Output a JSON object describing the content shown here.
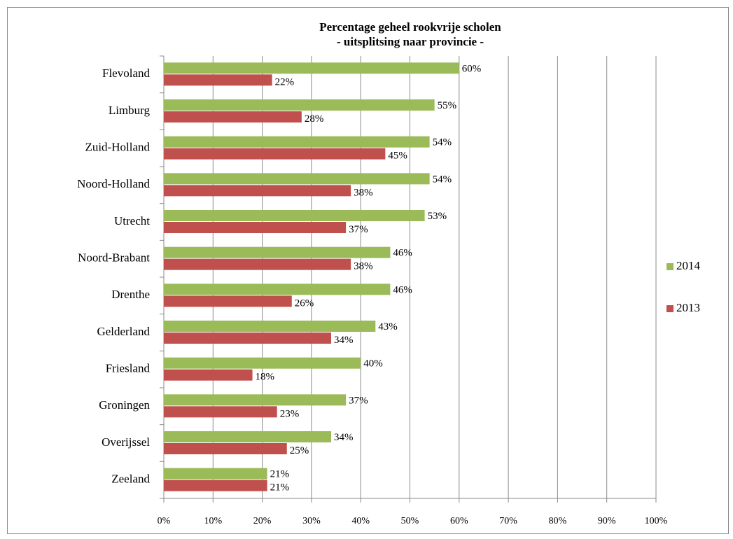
{
  "chart_data": {
    "type": "bar",
    "orientation": "horizontal",
    "title": [
      "Percentage geheel rookvrije scholen",
      "- uitsplitsing naar provincie -"
    ],
    "categories": [
      "Flevoland",
      "Limburg",
      "Zuid-Holland",
      "Noord-Holland",
      "Utrecht",
      "Noord-Brabant",
      "Drenthe",
      "Gelderland",
      "Friesland",
      "Groningen",
      "Overijssel",
      "Zeeland"
    ],
    "series": [
      {
        "name": "2014",
        "color": "#9bbb59",
        "values": [
          60,
          55,
          54,
          54,
          53,
          46,
          46,
          43,
          40,
          37,
          34,
          21
        ],
        "value_labels": [
          "60%",
          "55%",
          "54%",
          "54%",
          "53%",
          "46%",
          "46%",
          "43%",
          "40%",
          "37%",
          "34%",
          "21%"
        ]
      },
      {
        "name": "2013",
        "color": "#c0504d",
        "values": [
          22,
          28,
          45,
          38,
          37,
          38,
          26,
          34,
          18,
          23,
          25,
          21
        ],
        "value_labels": [
          "22%",
          "28%",
          "45%",
          "38%",
          "37%",
          "38%",
          "26%",
          "34%",
          "18%",
          "23%",
          "25%",
          "21%"
        ]
      }
    ],
    "xlim": [
      0,
      100
    ],
    "xticks": [
      {
        "value": 0,
        "label": "0%"
      },
      {
        "value": 10,
        "label": "10%"
      },
      {
        "value": 20,
        "label": "20%"
      },
      {
        "value": 30,
        "label": "30%"
      },
      {
        "value": 40,
        "label": "40%"
      },
      {
        "value": 50,
        "label": "50%"
      },
      {
        "value": 60,
        "label": "60%"
      },
      {
        "value": 70,
        "label": "70%"
      },
      {
        "value": 80,
        "label": "80%"
      },
      {
        "value": 90,
        "label": "90%"
      },
      {
        "value": 100,
        "label": "100%"
      }
    ],
    "grid": true,
    "legend": "right"
  }
}
